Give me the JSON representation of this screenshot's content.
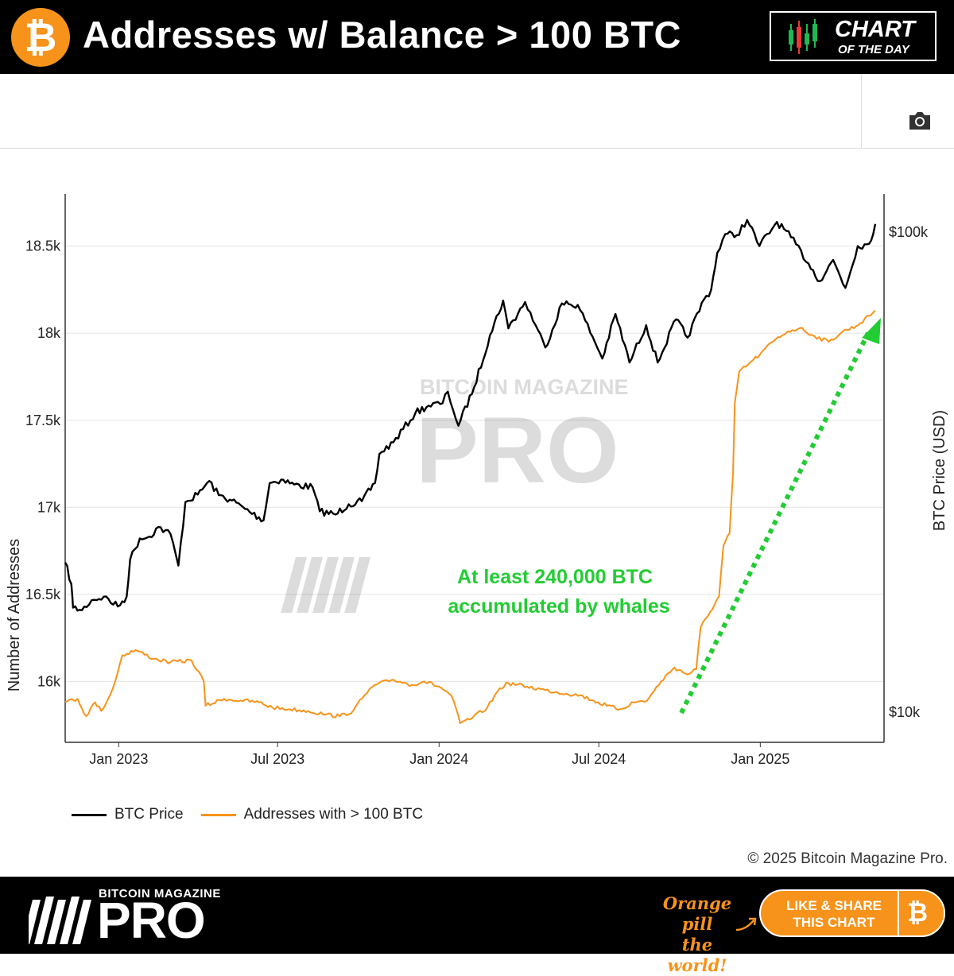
{
  "header": {
    "coin_symbol": "₿",
    "title": "Addresses w/ Balance > 100 BTC",
    "badge_line1": "CHART",
    "badge_line2": "OF THE DAY"
  },
  "toolbar": {
    "camera_icon": "camera-icon"
  },
  "chart_data": {
    "type": "line",
    "ylabel_left": "Number of Addresses",
    "ylabel_right": "BTC Price (USD)",
    "x_ticks": [
      "Jan 2023",
      "Jul 2023",
      "Jan 2024",
      "Jul 2024",
      "Jan 2025"
    ],
    "y_left_ticks": [
      "16k",
      "16.5k",
      "17k",
      "17.5k",
      "18k",
      "18.5k"
    ],
    "y_left_range": [
      15650,
      18800
    ],
    "y_right_ticks": [
      "$10k",
      "$100k"
    ],
    "y_right_scale": "log",
    "grid": true,
    "legend_position": "bottom-left",
    "annotation": {
      "line1": "At least 240,000 BTC",
      "line2": "accumulated by whales",
      "color": "#22cc33"
    },
    "series": [
      {
        "name": "BTC Price",
        "color": "#000000",
        "axis": "right",
        "points": [
          [
            "2022-11-01",
            20500
          ],
          [
            "2022-11-08",
            18500
          ],
          [
            "2022-11-10",
            16500
          ],
          [
            "2022-11-20",
            16300
          ],
          [
            "2022-12-01",
            17100
          ],
          [
            "2022-12-15",
            17400
          ],
          [
            "2022-12-31",
            16600
          ],
          [
            "2023-01-10",
            17400
          ],
          [
            "2023-01-14",
            20800
          ],
          [
            "2023-01-25",
            23000
          ],
          [
            "2023-02-05",
            23200
          ],
          [
            "2023-02-15",
            24300
          ],
          [
            "2023-03-01",
            23500
          ],
          [
            "2023-03-10",
            20200
          ],
          [
            "2023-03-18",
            27400
          ],
          [
            "2023-04-01",
            28400
          ],
          [
            "2023-04-14",
            30300
          ],
          [
            "2023-04-25",
            28300
          ],
          [
            "2023-05-10",
            27600
          ],
          [
            "2023-05-25",
            26500
          ],
          [
            "2023-06-15",
            25100
          ],
          [
            "2023-06-22",
            30000
          ],
          [
            "2023-07-05",
            30500
          ],
          [
            "2023-07-20",
            29800
          ],
          [
            "2023-08-10",
            29400
          ],
          [
            "2023-08-18",
            26200
          ],
          [
            "2023-09-05",
            25800
          ],
          [
            "2023-09-20",
            27100
          ],
          [
            "2023-10-05",
            27500
          ],
          [
            "2023-10-20",
            30000
          ],
          [
            "2023-10-25",
            34500
          ],
          [
            "2023-11-10",
            36500
          ],
          [
            "2023-12-05",
            42000
          ],
          [
            "2023-12-20",
            43500
          ],
          [
            "2024-01-05",
            44000
          ],
          [
            "2024-01-11",
            46500
          ],
          [
            "2024-01-23",
            39500
          ],
          [
            "2024-02-10",
            47500
          ],
          [
            "2024-02-28",
            61000
          ],
          [
            "2024-03-14",
            72000
          ],
          [
            "2024-03-20",
            63000
          ],
          [
            "2024-04-08",
            71500
          ],
          [
            "2024-04-20",
            64000
          ],
          [
            "2024-05-01",
            57500
          ],
          [
            "2024-05-20",
            71000
          ],
          [
            "2024-06-07",
            70500
          ],
          [
            "2024-06-24",
            60500
          ],
          [
            "2024-07-05",
            54500
          ],
          [
            "2024-07-20",
            67500
          ],
          [
            "2024-08-05",
            53500
          ],
          [
            "2024-08-24",
            64000
          ],
          [
            "2024-09-06",
            53500
          ],
          [
            "2024-09-27",
            65800
          ],
          [
            "2024-10-10",
            60300
          ],
          [
            "2024-10-29",
            72500
          ],
          [
            "2024-11-06",
            75800
          ],
          [
            "2024-11-13",
            90500
          ],
          [
            "2024-11-22",
            99000
          ],
          [
            "2024-12-05",
            98500
          ],
          [
            "2024-12-17",
            106000
          ],
          [
            "2024-12-31",
            93500
          ],
          [
            "2025-01-20",
            105000
          ],
          [
            "2025-02-05",
            97500
          ],
          [
            "2025-02-25",
            86000
          ],
          [
            "2025-03-10",
            79000
          ],
          [
            "2025-03-25",
            87500
          ],
          [
            "2025-04-08",
            76500
          ],
          [
            "2025-04-22",
            93500
          ],
          [
            "2025-05-05",
            94500
          ],
          [
            "2025-05-12",
            104000
          ]
        ]
      },
      {
        "name": "Addresses with > 100 BTC",
        "color": "#f7931a",
        "axis": "left",
        "points": [
          [
            "2022-11-01",
            15880
          ],
          [
            "2022-11-15",
            15900
          ],
          [
            "2022-11-25",
            15800
          ],
          [
            "2022-12-05",
            15880
          ],
          [
            "2022-12-12",
            15830
          ],
          [
            "2022-12-22",
            15920
          ],
          [
            "2022-12-28",
            16000
          ],
          [
            "2023-01-05",
            16150
          ],
          [
            "2023-01-20",
            16180
          ],
          [
            "2023-02-10",
            16130
          ],
          [
            "2023-03-01",
            16110
          ],
          [
            "2023-03-25",
            16120
          ],
          [
            "2023-04-08",
            16000
          ],
          [
            "2023-04-10",
            15860
          ],
          [
            "2023-05-01",
            15900
          ],
          [
            "2023-05-20",
            15890
          ],
          [
            "2023-06-10",
            15880
          ],
          [
            "2023-06-25",
            15850
          ],
          [
            "2023-07-15",
            15840
          ],
          [
            "2023-08-05",
            15830
          ],
          [
            "2023-08-25",
            15810
          ],
          [
            "2023-09-10",
            15800
          ],
          [
            "2023-09-25",
            15830
          ],
          [
            "2023-10-08",
            15920
          ],
          [
            "2023-10-20",
            15980
          ],
          [
            "2023-11-10",
            16010
          ],
          [
            "2023-12-01",
            15980
          ],
          [
            "2023-12-15",
            16000
          ],
          [
            "2024-01-01",
            15970
          ],
          [
            "2024-01-15",
            15920
          ],
          [
            "2024-01-25",
            15760
          ],
          [
            "2024-02-08",
            15790
          ],
          [
            "2024-02-25",
            15850
          ],
          [
            "2024-03-10",
            15960
          ],
          [
            "2024-03-20",
            15990
          ],
          [
            "2024-04-10",
            15970
          ],
          [
            "2024-05-01",
            15950
          ],
          [
            "2024-05-25",
            15930
          ],
          [
            "2024-06-10",
            15920
          ],
          [
            "2024-06-25",
            15890
          ],
          [
            "2024-07-10",
            15860
          ],
          [
            "2024-07-25",
            15840
          ],
          [
            "2024-08-10",
            15880
          ],
          [
            "2024-08-25",
            15890
          ],
          [
            "2024-09-10",
            16000
          ],
          [
            "2024-09-25",
            16080
          ],
          [
            "2024-10-10",
            16040
          ],
          [
            "2024-10-20",
            16070
          ],
          [
            "2024-10-25",
            16310
          ],
          [
            "2024-11-05",
            16400
          ],
          [
            "2024-11-15",
            16490
          ],
          [
            "2024-11-20",
            16780
          ],
          [
            "2024-11-27",
            16850
          ],
          [
            "2024-12-01",
            17200
          ],
          [
            "2024-12-03",
            17600
          ],
          [
            "2024-12-08",
            17780
          ],
          [
            "2024-12-18",
            17820
          ],
          [
            "2025-01-01",
            17880
          ],
          [
            "2025-01-15",
            17950
          ],
          [
            "2025-02-01",
            18010
          ],
          [
            "2025-02-15",
            18030
          ],
          [
            "2025-03-01",
            17990
          ],
          [
            "2025-03-20",
            17950
          ],
          [
            "2025-04-05",
            18010
          ],
          [
            "2025-04-20",
            18040
          ],
          [
            "2025-05-05",
            18100
          ],
          [
            "2025-05-12",
            18130
          ]
        ]
      }
    ]
  },
  "legend": {
    "item1": "BTC Price",
    "item2": "Addresses with > 100 BTC"
  },
  "watermark": {
    "line1": "BITCOIN MAGAZINE",
    "line2": "PRO"
  },
  "copyright": "© 2025 Bitcoin Magazine Pro.",
  "footer": {
    "brand_small": "BITCOIN MAGAZINE",
    "brand_big": "PRO",
    "slogan_line1": "Orange pill",
    "slogan_line2": "the world!",
    "share_line1": "LIKE & SHARE",
    "share_line2": "THIS CHART",
    "share_coin": "₿"
  }
}
